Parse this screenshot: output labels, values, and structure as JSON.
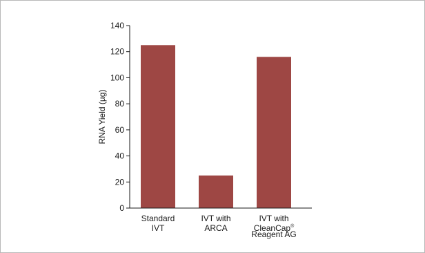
{
  "chart_data": {
    "type": "bar",
    "title": "",
    "xlabel": "",
    "ylabel": "RNA Yield (µg)",
    "ylim": [
      0,
      140
    ],
    "yticks": [
      0,
      20,
      40,
      60,
      80,
      100,
      120,
      140
    ],
    "categories": [
      [
        "Standard",
        "IVT"
      ],
      [
        "IVT with",
        "ARCA"
      ],
      [
        "IVT with",
        "CleanCap®",
        "Reagent AG"
      ]
    ],
    "values": [
      125,
      25,
      116
    ],
    "bar_color": "#9e4744",
    "axis_color": "#1a1a1a",
    "grid": false,
    "legend": "none"
  }
}
